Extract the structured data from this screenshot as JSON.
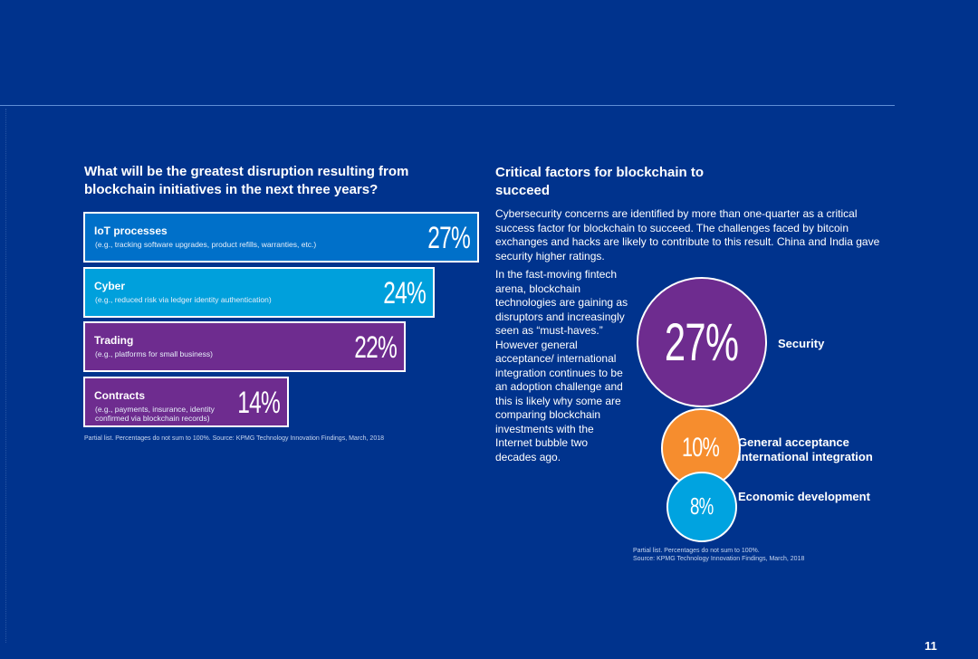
{
  "left_chart": {
    "title": "What will be the greatest disruption resulting from blockchain initiatives in the next three years?",
    "footnote": "Partial list. Percentages do not sum to 100%. Source: KPMG Technology Innovation Findings, March, 2018",
    "bars": [
      {
        "label": "IoT processes",
        "description": "(e.g., tracking software upgrades, product refills, warranties, etc.)",
        "value_label": "27%",
        "color": "#0070c9"
      },
      {
        "label": "Cyber",
        "description": "(e.g., reduced risk via ledger identity authentication)",
        "value_label": "24%",
        "color": "#00a0dc"
      },
      {
        "label": "Trading",
        "description": "(e.g., platforms for small business)",
        "value_label": "22%",
        "color": "#6e2c8f"
      },
      {
        "label": "Contracts",
        "description": "(e.g., payments, insurance, identity confirmed via blockchain records)",
        "value_label": "14%",
        "color": "#6e2c8f"
      }
    ]
  },
  "right_panel": {
    "title": "Critical factors for blockchain to succeed",
    "intro": "Cybersecurity concerns are identified by more than one-quarter as a critical success factor for blockchain to succeed. The challenges faced by bitcoin exchanges and hacks are likely to contribute to this result. China and India gave security higher ratings.",
    "narrative": "In the fast-moving fintech arena, blockchain technologies are gaining as disruptors and increasingly seen as “must-haves.” However general acceptance/ international integration continues to be an adoption challenge and this is likely why some are comparing blockchain investments with the Internet bubble two decades ago.",
    "bubbles": [
      {
        "label": "Security",
        "value_label": "27%",
        "color": "#6e2c8f"
      },
      {
        "label": "General acceptance international integration",
        "value_label": "10%",
        "color": "#f68d2e"
      },
      {
        "label": "Economic development",
        "value_label": "8%",
        "color": "#00a3e0"
      }
    ],
    "footnote_line1": "Partial list. Percentages do not sum to 100%.",
    "footnote_line2": "Source: KPMG Technology Innovation Findings, March, 2018"
  },
  "page_number": "11",
  "colors": {
    "background": "#00338d",
    "rule": "#5f8fd6"
  },
  "chart_data": [
    {
      "type": "bar",
      "title": "What will be the greatest disruption resulting from blockchain initiatives in the next three years?",
      "categories": [
        "IoT processes",
        "Cyber",
        "Trading",
        "Contracts"
      ],
      "values": [
        27,
        24,
        22,
        14
      ],
      "unit": "%",
      "orientation": "horizontal"
    },
    {
      "type": "bubble",
      "title": "Critical factors for blockchain to succeed",
      "categories": [
        "Security",
        "General acceptance international integration",
        "Economic development"
      ],
      "values": [
        27,
        10,
        8
      ],
      "unit": "%"
    }
  ]
}
